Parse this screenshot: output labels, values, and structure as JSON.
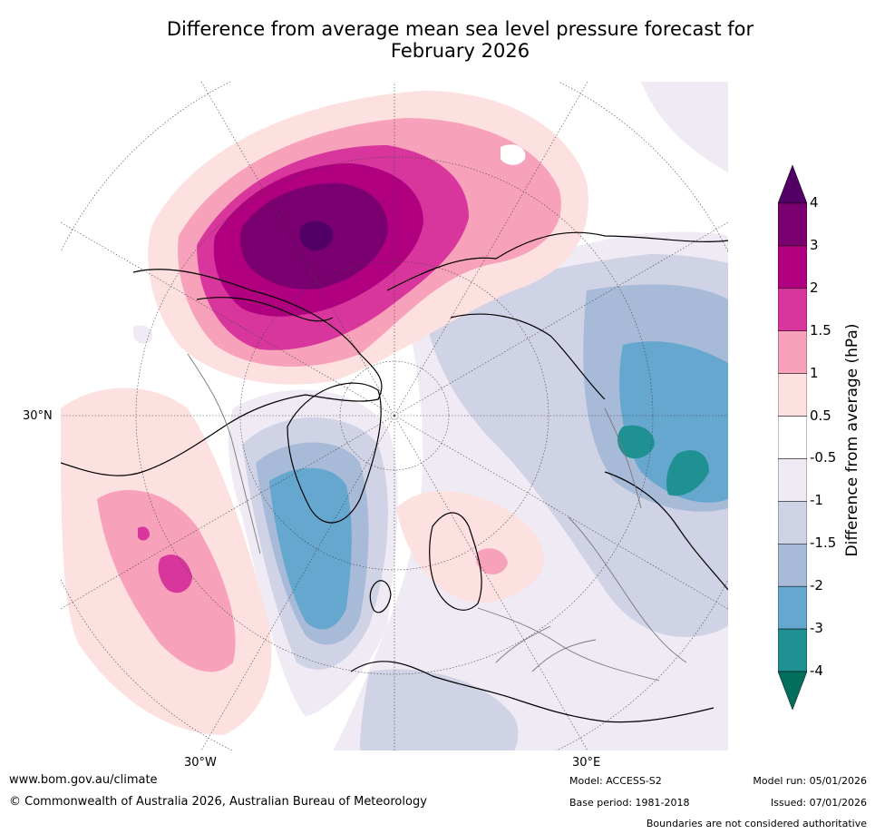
{
  "title": {
    "line1": "Difference from average mean sea level pressure forecast for",
    "line2": "February 2026"
  },
  "map": {
    "projection": "north-polar-stereographic",
    "lat_label": "30°N",
    "lon_label_west": "30°W",
    "lon_label_east": "30°E",
    "anomalies": [
      {
        "region": "North Pacific / Alaska",
        "sign": "positive",
        "peak_hPa": 4
      },
      {
        "region": "Eastern Pacific west of North America",
        "sign": "positive",
        "peak_hPa": 2
      },
      {
        "region": "Western Siberia / Central Asia",
        "sign": "negative",
        "peak_hPa": -4
      },
      {
        "region": "Greenland / North Atlantic",
        "sign": "negative",
        "peak_hPa": -3
      },
      {
        "region": "Scandinavia / Western Russia",
        "sign": "positive",
        "peak_hPa": 1.5
      }
    ]
  },
  "colorbar": {
    "title": "Difference from average (hPa)",
    "ticks": [
      "4",
      "3",
      "2",
      "1.5",
      "1",
      "0.5",
      "-0.5",
      "-1",
      "-1.5",
      "-2",
      "-3",
      "-4"
    ],
    "colors": [
      "#520066",
      "#7a0070",
      "#b0007f",
      "#d8369c",
      "#f7a1bb",
      "#fde0e0",
      "#ffffff",
      "#efeaf3",
      "#d0d2e6",
      "#a7bbd9",
      "#65a7cf",
      "#1f9193",
      "#046e5e"
    ]
  },
  "footer": {
    "url": "www.bom.gov.au/climate",
    "copyright": "© Commonwealth of Australia 2026, Australian Bureau of Meteorology",
    "model": "Model: ACCESS-S2",
    "base_period": "Base period: 1981-2018",
    "model_run": "Model run: 05/01/2026",
    "issued": "Issued: 07/01/2026",
    "boundaries": "Boundaries are not considered authoritative"
  }
}
